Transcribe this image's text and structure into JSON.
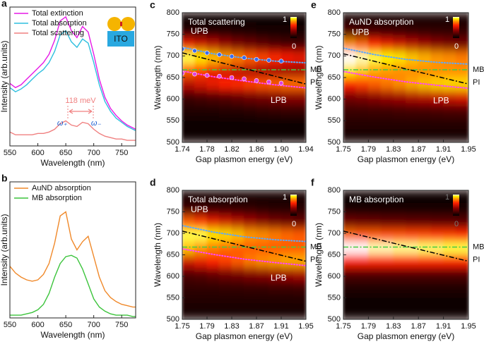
{
  "chart_data": [
    {
      "type": "line",
      "panel": "a",
      "xlabel": "Wavelength (nm)",
      "ylabel": "Intensity (arb.units)",
      "xlim": [
        550,
        775
      ],
      "xticks": [
        550,
        600,
        650,
        700,
        750
      ],
      "ylim": [
        0,
        1
      ],
      "legend": "upper left",
      "annotations": [
        "118 meV",
        "ω₊",
        "ω₋",
        "ITO"
      ],
      "x": [
        550,
        560,
        570,
        580,
        590,
        600,
        610,
        620,
        630,
        640,
        650,
        660,
        670,
        680,
        690,
        700,
        710,
        720,
        730,
        740,
        750,
        760,
        770,
        775
      ],
      "series": [
        {
          "name": "Total extinction",
          "color": "#e619e6",
          "values": [
            0.45,
            0.42,
            0.44,
            0.48,
            0.52,
            0.56,
            0.6,
            0.66,
            0.76,
            0.9,
            0.93,
            0.83,
            0.78,
            0.86,
            0.82,
            0.66,
            0.48,
            0.35,
            0.27,
            0.22,
            0.18,
            0.15,
            0.13,
            0.12
          ]
        },
        {
          "name": "Total absorption",
          "color": "#2fbfdf",
          "values": [
            0.42,
            0.39,
            0.41,
            0.44,
            0.48,
            0.52,
            0.55,
            0.6,
            0.68,
            0.8,
            0.83,
            0.75,
            0.71,
            0.77,
            0.74,
            0.6,
            0.44,
            0.32,
            0.25,
            0.2,
            0.17,
            0.14,
            0.12,
            0.11
          ]
        },
        {
          "name": "Total scattering",
          "color": "#f08080",
          "values": [
            0.1,
            0.08,
            0.08,
            0.08,
            0.08,
            0.09,
            0.09,
            0.1,
            0.12,
            0.16,
            0.18,
            0.15,
            0.14,
            0.17,
            0.16,
            0.12,
            0.09,
            0.07,
            0.06,
            0.05,
            0.05,
            0.04,
            0.04,
            0.04
          ]
        }
      ]
    },
    {
      "type": "line",
      "panel": "b",
      "xlabel": "Wavelength (nm)",
      "ylabel": "Intensity (arb.units)",
      "xlim": [
        550,
        775
      ],
      "xticks": [
        550,
        600,
        650,
        700,
        750
      ],
      "ylim": [
        0,
        1
      ],
      "legend": "upper left",
      "x": [
        550,
        560,
        570,
        580,
        590,
        600,
        610,
        620,
        630,
        640,
        650,
        660,
        670,
        680,
        690,
        700,
        710,
        720,
        730,
        740,
        750,
        760,
        770,
        775
      ],
      "series": [
        {
          "name": "AuND absorption",
          "color": "#f0892a",
          "values": [
            0.38,
            0.33,
            0.3,
            0.28,
            0.27,
            0.28,
            0.32,
            0.4,
            0.55,
            0.75,
            0.78,
            0.58,
            0.5,
            0.56,
            0.6,
            0.45,
            0.3,
            0.2,
            0.15,
            0.12,
            0.1,
            0.09,
            0.08,
            0.08
          ]
        },
        {
          "name": "MB absorption",
          "color": "#3cc43c",
          "values": [
            0.02,
            0.02,
            0.02,
            0.03,
            0.04,
            0.06,
            0.1,
            0.18,
            0.3,
            0.4,
            0.45,
            0.46,
            0.44,
            0.36,
            0.25,
            0.14,
            0.08,
            0.05,
            0.03,
            0.02,
            0.02,
            0.02,
            0.01,
            0.01
          ]
        }
      ]
    },
    {
      "type": "heatmap",
      "panel": "c",
      "title": "Total scattering",
      "xlabel": "Gap plasmon energy (eV)",
      "ylabel": "Wavelength (nm)",
      "xlim": [
        1.74,
        1.94
      ],
      "xticks": [
        1.74,
        1.78,
        1.82,
        1.86,
        {
          "value": 1.9,
          "label": "1.90"
        },
        1.94
      ],
      "ylim": [
        500,
        800
      ],
      "yticks": [
        500,
        550,
        600,
        650,
        700,
        750,
        800
      ],
      "zlim": [
        0,
        1
      ],
      "x": [
        1.75,
        1.77,
        1.79,
        1.81,
        1.83,
        1.85,
        1.87,
        1.89,
        1.91,
        1.93
      ],
      "y": [
        785,
        755,
        725,
        695,
        665,
        635,
        605,
        575,
        545,
        515
      ],
      "z": [
        [
          0.03,
          0.03,
          0.03,
          0.03,
          0.03,
          0.03,
          0.03,
          0.03,
          0.03,
          0.03
        ],
        [
          0.1,
          0.1,
          0.08,
          0.08,
          0.07,
          0.07,
          0.06,
          0.06,
          0.06,
          0.06
        ],
        [
          0.55,
          0.5,
          0.45,
          0.38,
          0.32,
          0.28,
          0.24,
          0.2,
          0.18,
          0.16
        ],
        [
          0.95,
          0.9,
          0.85,
          0.8,
          0.75,
          0.7,
          0.66,
          0.62,
          0.58,
          0.55
        ],
        [
          0.7,
          0.65,
          0.55,
          0.5,
          0.45,
          0.42,
          0.4,
          0.4,
          0.38,
          0.38
        ],
        [
          0.45,
          0.5,
          0.55,
          0.6,
          0.62,
          0.65,
          0.68,
          0.7,
          0.72,
          0.72
        ],
        [
          0.15,
          0.18,
          0.2,
          0.22,
          0.25,
          0.28,
          0.3,
          0.32,
          0.35,
          0.35
        ],
        [
          0.08,
          0.08,
          0.09,
          0.1,
          0.1,
          0.11,
          0.12,
          0.13,
          0.14,
          0.14
        ],
        [
          0.04,
          0.04,
          0.04,
          0.04,
          0.04,
          0.04,
          0.04,
          0.04,
          0.04,
          0.04
        ],
        [
          0.03,
          0.03,
          0.03,
          0.03,
          0.03,
          0.03,
          0.03,
          0.03,
          0.03,
          0.03
        ]
      ],
      "series": [
        {
          "name": "UPB",
          "color": "#5aa8ff",
          "style": "dotted",
          "x": [
            1.74,
            1.79,
            1.84,
            1.89,
            1.94
          ],
          "values": [
            720,
            705,
            695,
            688,
            684
          ]
        },
        {
          "name": "LPB",
          "color": "#ff44ff",
          "style": "dotted",
          "x": [
            1.74,
            1.79,
            1.84,
            1.89,
            1.94
          ],
          "values": [
            665,
            652,
            642,
            633,
            626
          ]
        },
        {
          "name": "MB",
          "color": "#44cc44",
          "style": "dashdot",
          "x": [
            1.74,
            1.94
          ],
          "values": [
            668,
            668
          ]
        },
        {
          "name": "PI",
          "color": "#000000",
          "style": "dashdot",
          "x": [
            1.74,
            1.94
          ],
          "values": [
            707,
            635
          ]
        }
      ],
      "points": [
        {
          "color": "#3a6cf0",
          "x": [
            1.74,
            1.76,
            1.78,
            1.8,
            1.82,
            1.84,
            1.86,
            1.88,
            1.9
          ],
          "values": [
            716,
            712,
            707,
            703,
            699,
            696,
            692,
            690,
            688
          ]
        },
        {
          "color": "#e040e0",
          "x": [
            1.74,
            1.76,
            1.78,
            1.8,
            1.82,
            1.84,
            1.86,
            1.88,
            1.9
          ],
          "values": [
            660,
            658,
            655,
            653,
            650,
            647,
            643,
            640,
            637
          ]
        }
      ]
    },
    {
      "type": "heatmap",
      "panel": "d",
      "title": "Total absorption",
      "xlabel": "Gap plasmon energy (eV)",
      "ylabel": "Wavelength (nm)",
      "xlim": [
        1.75,
        1.95
      ],
      "xticks": [
        1.75,
        1.79,
        1.83,
        1.87,
        1.91,
        1.95
      ],
      "ylim": [
        500,
        800
      ],
      "yticks": [
        500,
        550,
        600,
        650,
        700,
        750,
        800
      ],
      "zlim": [
        0,
        1
      ],
      "x": [
        1.76,
        1.78,
        1.8,
        1.82,
        1.84,
        1.86,
        1.88,
        1.9,
        1.92,
        1.94
      ],
      "y": [
        785,
        755,
        725,
        695,
        665,
        635,
        605,
        575,
        545,
        515
      ],
      "z": [
        [
          0.05,
          0.05,
          0.05,
          0.05,
          0.05,
          0.05,
          0.05,
          0.05,
          0.05,
          0.05
        ],
        [
          0.15,
          0.15,
          0.14,
          0.13,
          0.12,
          0.12,
          0.11,
          0.1,
          0.1,
          0.1
        ],
        [
          0.7,
          0.65,
          0.55,
          0.5,
          0.45,
          0.4,
          0.35,
          0.3,
          0.28,
          0.25
        ],
        [
          0.95,
          0.95,
          0.9,
          0.88,
          0.85,
          0.8,
          0.78,
          0.75,
          0.72,
          0.7
        ],
        [
          0.85,
          0.8,
          0.75,
          0.72,
          0.7,
          0.7,
          0.7,
          0.7,
          0.7,
          0.7
        ],
        [
          0.5,
          0.55,
          0.6,
          0.65,
          0.7,
          0.75,
          0.78,
          0.8,
          0.82,
          0.82
        ],
        [
          0.2,
          0.22,
          0.25,
          0.28,
          0.3,
          0.33,
          0.35,
          0.38,
          0.4,
          0.42
        ],
        [
          0.12,
          0.12,
          0.12,
          0.13,
          0.13,
          0.14,
          0.14,
          0.15,
          0.15,
          0.16
        ],
        [
          0.08,
          0.08,
          0.08,
          0.08,
          0.08,
          0.08,
          0.08,
          0.08,
          0.08,
          0.08
        ],
        [
          0.05,
          0.05,
          0.05,
          0.05,
          0.05,
          0.05,
          0.05,
          0.05,
          0.05,
          0.05
        ]
      ],
      "series": [
        {
          "name": "UPB",
          "color": "#5aa8ff",
          "style": "dotted",
          "x": [
            1.75,
            1.8,
            1.85,
            1.9,
            1.95
          ],
          "values": [
            718,
            703,
            692,
            685,
            681
          ]
        },
        {
          "name": "LPB",
          "color": "#ff44ff",
          "style": "dotted",
          "x": [
            1.75,
            1.8,
            1.85,
            1.9,
            1.95
          ],
          "values": [
            664,
            651,
            640,
            632,
            625
          ]
        },
        {
          "name": "MB",
          "color": "#44cc44",
          "style": "dashdot",
          "x": [
            1.75,
            1.95
          ],
          "values": [
            668,
            668
          ]
        },
        {
          "name": "PI",
          "color": "#000000",
          "style": "dashdot",
          "x": [
            1.75,
            1.95
          ],
          "values": [
            705,
            635
          ]
        }
      ]
    },
    {
      "type": "heatmap",
      "panel": "e",
      "title": "AuND absorption",
      "xlabel": "Gap plasmon energy (eV)",
      "ylabel": "Wavelength (nm)",
      "xlim": [
        1.75,
        1.95
      ],
      "xticks": [
        1.75,
        1.79,
        1.83,
        1.87,
        1.91,
        1.95
      ],
      "ylim": [
        500,
        800
      ],
      "yticks": [
        500,
        550,
        600,
        650,
        700,
        750,
        800
      ],
      "zlim": [
        0,
        1
      ],
      "x": [
        1.76,
        1.78,
        1.8,
        1.82,
        1.84,
        1.86,
        1.88,
        1.9,
        1.92,
        1.94
      ],
      "y": [
        785,
        755,
        725,
        695,
        665,
        635,
        605,
        575,
        545,
        515
      ],
      "z": [
        [
          0.06,
          0.06,
          0.06,
          0.06,
          0.06,
          0.06,
          0.06,
          0.06,
          0.06,
          0.06
        ],
        [
          0.2,
          0.18,
          0.17,
          0.16,
          0.15,
          0.14,
          0.13,
          0.12,
          0.12,
          0.12
        ],
        [
          0.78,
          0.72,
          0.62,
          0.55,
          0.5,
          0.45,
          0.4,
          0.35,
          0.32,
          0.3
        ],
        [
          1,
          0.98,
          0.95,
          0.92,
          0.9,
          0.86,
          0.83,
          0.8,
          0.78,
          0.75
        ],
        [
          0.9,
          0.86,
          0.82,
          0.8,
          0.78,
          0.78,
          0.78,
          0.78,
          0.78,
          0.78
        ],
        [
          0.6,
          0.65,
          0.7,
          0.74,
          0.78,
          0.82,
          0.85,
          0.87,
          0.88,
          0.88
        ],
        [
          0.3,
          0.32,
          0.35,
          0.38,
          0.4,
          0.43,
          0.45,
          0.48,
          0.5,
          0.52
        ],
        [
          0.15,
          0.15,
          0.16,
          0.16,
          0.17,
          0.18,
          0.18,
          0.19,
          0.2,
          0.2
        ],
        [
          0.1,
          0.1,
          0.1,
          0.1,
          0.1,
          0.1,
          0.1,
          0.1,
          0.1,
          0.1
        ],
        [
          0.06,
          0.06,
          0.06,
          0.06,
          0.06,
          0.06,
          0.06,
          0.06,
          0.06,
          0.06
        ]
      ],
      "series": [
        {
          "name": "UPB",
          "color": "#5aa8ff",
          "style": "dotted",
          "x": [
            1.75,
            1.8,
            1.85,
            1.9,
            1.95
          ],
          "values": [
            718,
            703,
            692,
            685,
            681
          ]
        },
        {
          "name": "LPB",
          "color": "#ff44ff",
          "style": "dotted",
          "x": [
            1.75,
            1.8,
            1.85,
            1.9,
            1.95
          ],
          "values": [
            664,
            651,
            640,
            632,
            625
          ]
        },
        {
          "name": "MB",
          "color": "#44cc44",
          "style": "dashdot",
          "x": [
            1.75,
            1.95
          ],
          "values": [
            668,
            668
          ]
        },
        {
          "name": "PI",
          "color": "#000000",
          "style": "dashdot",
          "x": [
            1.75,
            1.95
          ],
          "values": [
            705,
            635
          ]
        }
      ]
    },
    {
      "type": "heatmap",
      "panel": "f",
      "title": "MB absorption",
      "xlabel": "Gap plasmon energy (eV)",
      "ylabel": "Wavelength (nm)",
      "xlim": [
        1.75,
        1.95
      ],
      "xticks": [
        1.75,
        1.79,
        1.83,
        1.87,
        1.91,
        1.95
      ],
      "ylim": [
        500,
        800
      ],
      "yticks": [
        500,
        550,
        600,
        650,
        700,
        750,
        800
      ],
      "zlim": [
        0,
        1
      ],
      "x": [
        1.76,
        1.78,
        1.8,
        1.82,
        1.84,
        1.86,
        1.88,
        1.9,
        1.92,
        1.94
      ],
      "y": [
        785,
        755,
        725,
        695,
        665,
        635,
        605,
        575,
        545,
        515
      ],
      "z": [
        [
          0.02,
          0.02,
          0.02,
          0.02,
          0.02,
          0.02,
          0.02,
          0.02,
          0.02,
          0.02
        ],
        [
          0.05,
          0.05,
          0.05,
          0.05,
          0.05,
          0.05,
          0.05,
          0.05,
          0.05,
          0.05
        ],
        [
          0.28,
          0.27,
          0.26,
          0.25,
          0.25,
          0.24,
          0.24,
          0.23,
          0.23,
          0.22
        ],
        [
          0.72,
          0.7,
          0.7,
          0.68,
          0.68,
          0.66,
          0.66,
          0.64,
          0.64,
          0.62
        ],
        [
          1,
          1,
          0.98,
          0.98,
          0.97,
          0.97,
          0.96,
          0.96,
          0.95,
          0.95
        ],
        [
          0.6,
          0.6,
          0.6,
          0.6,
          0.6,
          0.6,
          0.6,
          0.6,
          0.6,
          0.6
        ],
        [
          0.2,
          0.2,
          0.2,
          0.2,
          0.2,
          0.2,
          0.2,
          0.2,
          0.2,
          0.2
        ],
        [
          0.08,
          0.08,
          0.08,
          0.08,
          0.08,
          0.08,
          0.08,
          0.08,
          0.08,
          0.08
        ],
        [
          0.04,
          0.04,
          0.04,
          0.04,
          0.04,
          0.04,
          0.04,
          0.04,
          0.04,
          0.04
        ],
        [
          0.02,
          0.02,
          0.02,
          0.02,
          0.02,
          0.02,
          0.02,
          0.02,
          0.02,
          0.02
        ]
      ],
      "series": [
        {
          "name": "MB",
          "color": "#44cc44",
          "style": "dashdot",
          "x": [
            1.75,
            1.95
          ],
          "values": [
            668,
            668
          ]
        },
        {
          "name": "PI",
          "color": "#000000",
          "style": "dashdot",
          "x": [
            1.75,
            1.95
          ],
          "values": [
            705,
            635
          ]
        }
      ]
    }
  ]
}
